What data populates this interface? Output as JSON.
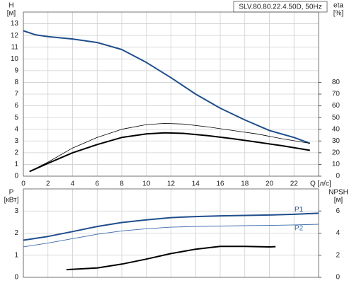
{
  "chart_data": [
    {
      "type": "line",
      "title": "SLV.80.80.22.4.50D, 50Hz",
      "ylabel": "H",
      "ylabel_unit": "[м]",
      "y2label": "eta",
      "y2label_unit": "[%]",
      "xlabel": "Q [л/с]",
      "xlim": [
        0,
        24
      ],
      "xticks": [
        0,
        2,
        4,
        6,
        8,
        10,
        12,
        14,
        16,
        18,
        20,
        22
      ],
      "ylim": [
        0,
        14
      ],
      "yticks": [
        0,
        1,
        2,
        3,
        4,
        5,
        6,
        7,
        8,
        9,
        10,
        11,
        12,
        13
      ],
      "y2lim": [
        0,
        140
      ],
      "y2ticks": [
        0,
        10,
        20,
        30,
        40,
        50,
        60,
        70,
        80
      ],
      "grid": true,
      "series": [
        {
          "color": "#1f4e8c",
          "width": 2,
          "x": [
            0,
            1,
            2,
            4,
            6,
            8,
            10,
            12,
            14,
            16,
            18,
            20,
            22,
            23.3
          ],
          "values": [
            12.4,
            12.05,
            11.9,
            11.7,
            11.4,
            10.8,
            9.7,
            8.4,
            7.0,
            5.8,
            4.8,
            3.9,
            3.3,
            2.8
          ]
        },
        {
          "color": "#000000",
          "width": 0.8,
          "axis": "y2",
          "x": [
            0.5,
            2,
            4,
            6,
            8,
            10,
            11.5,
            13,
            15,
            17,
            19,
            21,
            23.3
          ],
          "values": [
            4,
            12,
            24,
            33,
            40,
            44,
            45,
            44.5,
            42,
            39,
            36,
            32,
            28
          ]
        },
        {
          "color": "#000000",
          "width": 2,
          "x": [
            0.5,
            2,
            4,
            6,
            8,
            10,
            11.5,
            13,
            15,
            17,
            19,
            21,
            23.3
          ],
          "values": [
            0.4,
            1.1,
            2.0,
            2.7,
            3.3,
            3.6,
            3.7,
            3.65,
            3.45,
            3.2,
            2.9,
            2.6,
            2.2
          ]
        }
      ]
    },
    {
      "type": "line",
      "ylabel": "P",
      "ylabel_unit": "[кВт]",
      "y2label": "NPSH",
      "y2label_unit": "[м]",
      "xlim": [
        0,
        24
      ],
      "xticks": [
        0,
        2,
        4,
        6,
        8,
        10,
        12,
        14,
        16,
        18,
        20,
        22
      ],
      "ylim": [
        0,
        4
      ],
      "yticks": [
        0,
        1,
        2,
        3
      ],
      "y2lim": [
        0,
        8
      ],
      "y2ticks": [
        0,
        2,
        4,
        6
      ],
      "grid": true,
      "series": [
        {
          "name": "P1",
          "color": "#1f4e8c",
          "width": 2,
          "x": [
            0,
            2,
            4,
            6,
            8,
            10,
            12,
            14,
            16,
            18,
            20,
            22,
            24
          ],
          "values": [
            1.68,
            1.85,
            2.07,
            2.3,
            2.48,
            2.6,
            2.7,
            2.75,
            2.78,
            2.8,
            2.82,
            2.85,
            2.9
          ]
        },
        {
          "name": "P2",
          "color": "#3b6aa8",
          "width": 0.9,
          "x": [
            0,
            2,
            4,
            6,
            8,
            10,
            12,
            14,
            16,
            18,
            20,
            22,
            24
          ],
          "values": [
            1.38,
            1.55,
            1.75,
            1.95,
            2.1,
            2.2,
            2.27,
            2.3,
            2.32,
            2.34,
            2.35,
            2.37,
            2.4
          ]
        },
        {
          "color": "#000000",
          "width": 2,
          "axis": "y2",
          "x": [
            3.5,
            6,
            8,
            10,
            12,
            14,
            16,
            18,
            20,
            20.5
          ],
          "values": [
            0.7,
            0.85,
            1.2,
            1.65,
            2.15,
            2.55,
            2.8,
            2.8,
            2.75,
            2.78
          ]
        }
      ]
    }
  ]
}
